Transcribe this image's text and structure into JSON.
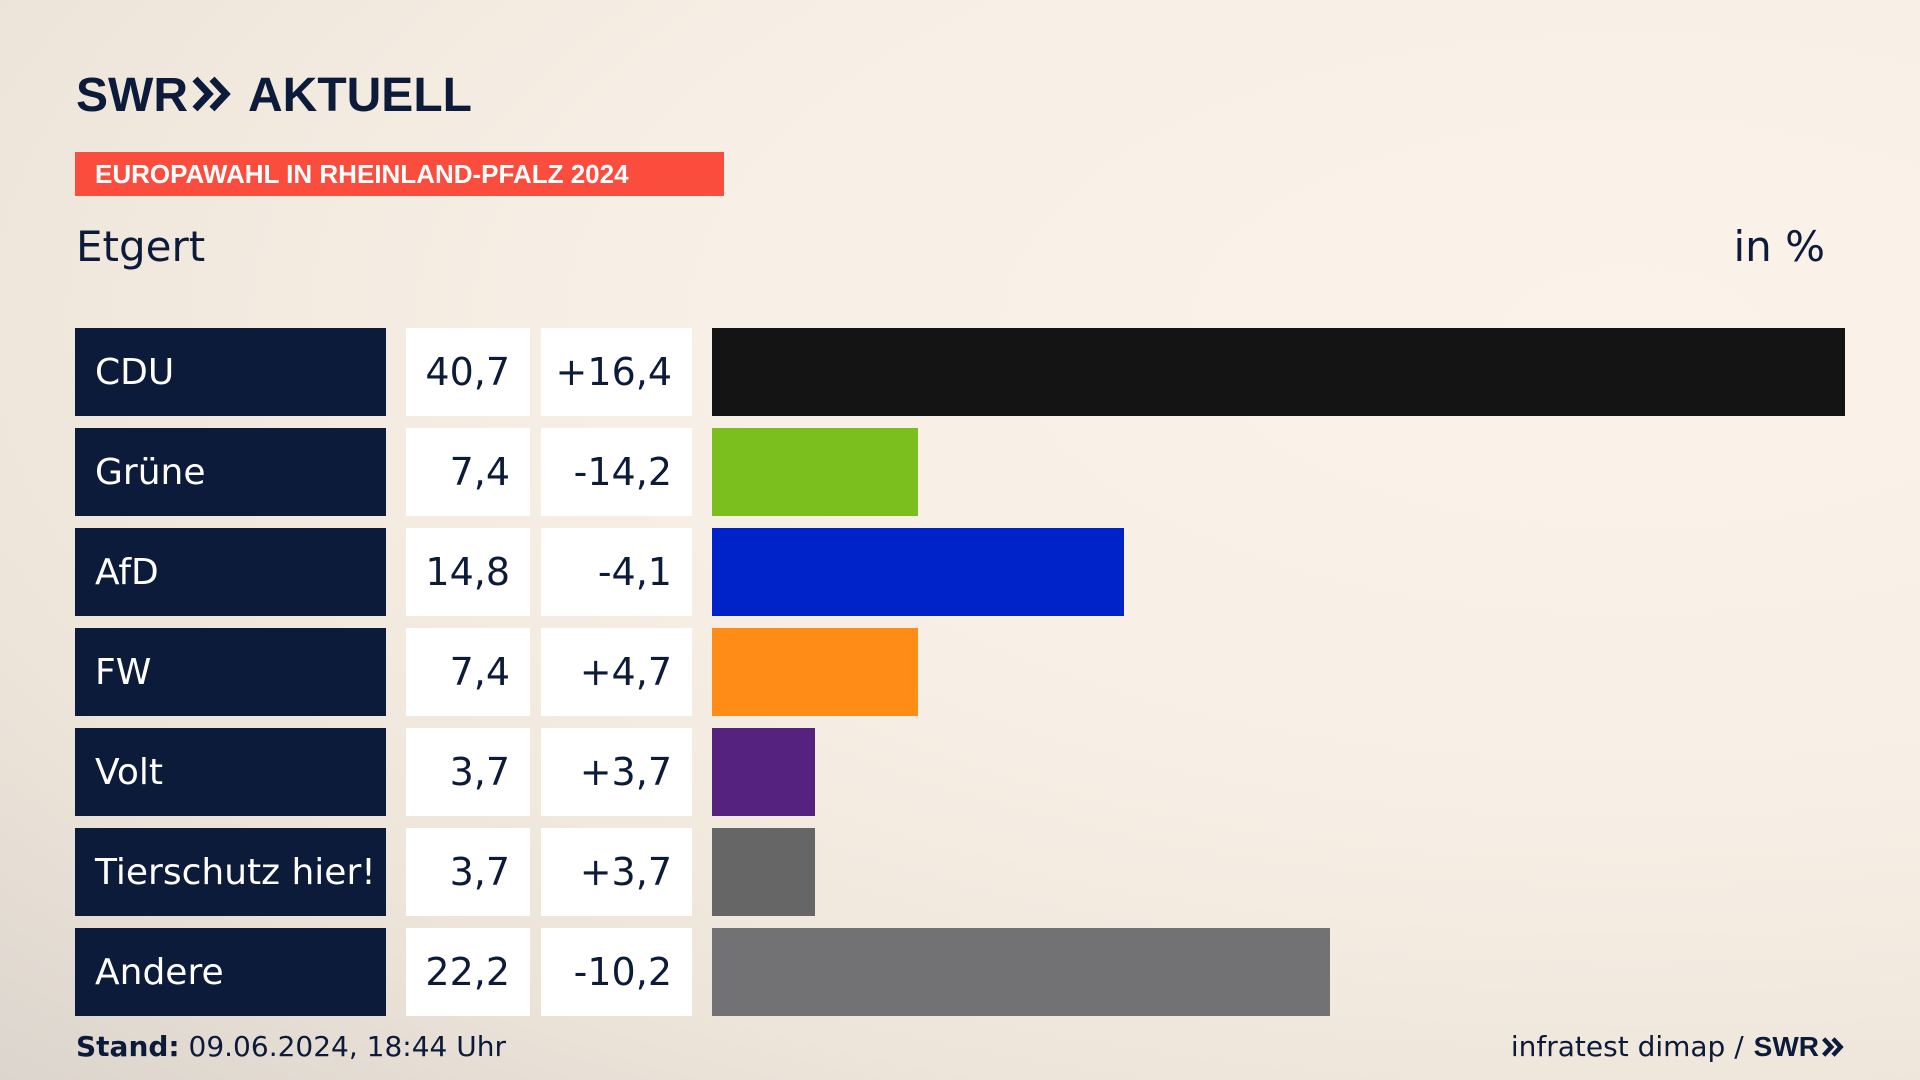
{
  "header": {
    "brand": "SWR",
    "product": "AKTUELL",
    "badge": "EUROPAWAHL IN RHEINLAND-PFALZ 2024",
    "region": "Etgert",
    "unit": "in %"
  },
  "chart_data": {
    "type": "bar",
    "orientation": "horizontal",
    "categories": [
      "CDU",
      "Grüne",
      "AfD",
      "FW",
      "Volt",
      "Tierschutz hier!",
      "Andere"
    ],
    "values": [
      40.7,
      7.4,
      14.8,
      7.4,
      3.7,
      3.7,
      22.2
    ],
    "value_labels": [
      "40,7",
      "7,4",
      "14,8",
      "7,4",
      "3,7",
      "3,7",
      "22,2"
    ],
    "changes": [
      16.4,
      -14.2,
      -4.1,
      4.7,
      3.7,
      3.7,
      -10.2
    ],
    "change_labels": [
      "+16,4",
      "-14,2",
      "-4,1",
      "+4,7",
      "+3,7",
      "+3,7",
      "-10,2"
    ],
    "colors": [
      "#141414",
      "#7abf1e",
      "#0022c9",
      "#ff8c17",
      "#55237f",
      "#666666",
      "#727274"
    ],
    "xlim": [
      0,
      40.7
    ],
    "grid": false,
    "legend": "none"
  },
  "footer": {
    "stand_label": "Stand:",
    "stand_value": "09.06.2024, 18:44 Uhr",
    "source": "infratest dimap /",
    "source_brand": "SWR"
  }
}
